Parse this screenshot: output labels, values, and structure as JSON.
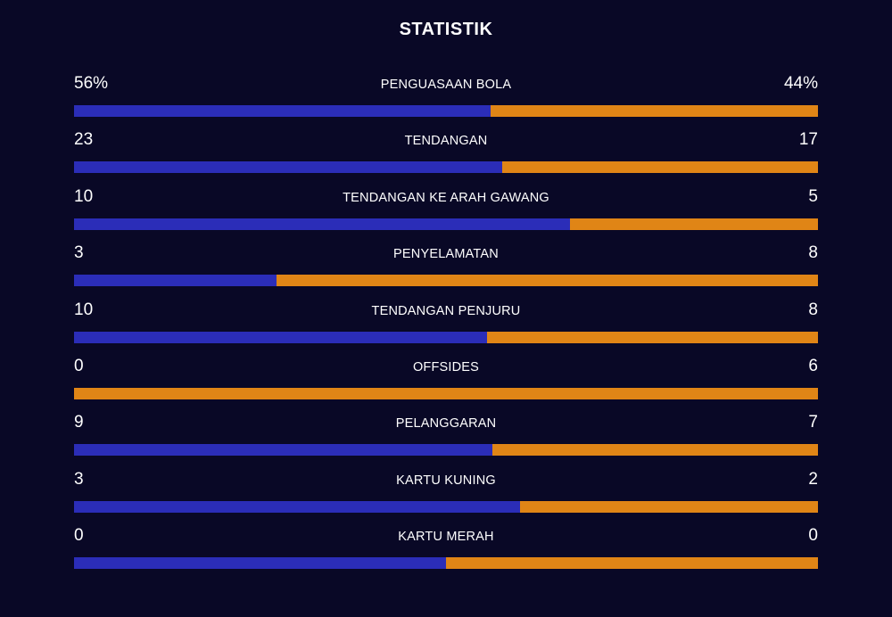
{
  "title": "STATISTIK",
  "colors": {
    "home": "#2b2db8",
    "away": "#e08516",
    "background": "#090826"
  },
  "chart_data": {
    "type": "bar",
    "orientation": "horizontal-split",
    "title": "STATISTIK",
    "categories": [
      "PENGUASAAN BOLA",
      "TENDANGAN",
      "TENDANGAN KE ARAH GAWANG",
      "PENYELAMATAN",
      "TENDANGAN PENJURU",
      "OFFSIDES",
      "PELANGGARAN",
      "KARTU KUNING",
      "KARTU MERAH"
    ],
    "series": [
      {
        "values": [
          56,
          23,
          10,
          3,
          10,
          0,
          9,
          3,
          0
        ]
      },
      {
        "values": [
          44,
          17,
          5,
          8,
          8,
          6,
          7,
          2,
          0
        ]
      }
    ],
    "rows": [
      {
        "label": "PENGUASAAN BOLA",
        "left_text": "56%",
        "right_text": "44%",
        "left": 56,
        "right": 44
      },
      {
        "label": "TENDANGAN",
        "left_text": "23",
        "right_text": "17",
        "left": 23,
        "right": 17
      },
      {
        "label": "TENDANGAN KE ARAH GAWANG",
        "left_text": "10",
        "right_text": "5",
        "left": 10,
        "right": 5
      },
      {
        "label": "PENYELAMATAN",
        "left_text": "3",
        "right_text": "8",
        "left": 3,
        "right": 8
      },
      {
        "label": "TENDANGAN PENJURU",
        "left_text": "10",
        "right_text": "8",
        "left": 10,
        "right": 8
      },
      {
        "label": "OFFSIDES",
        "left_text": "0",
        "right_text": "6",
        "left": 0,
        "right": 6
      },
      {
        "label": "PELANGGARAN",
        "left_text": "9",
        "right_text": "7",
        "left": 9,
        "right": 7
      },
      {
        "label": "KARTU KUNING",
        "left_text": "3",
        "right_text": "2",
        "left": 3,
        "right": 2
      },
      {
        "label": "KARTU MERAH",
        "left_text": "0",
        "right_text": "0",
        "left": 0,
        "right": 0
      }
    ]
  }
}
